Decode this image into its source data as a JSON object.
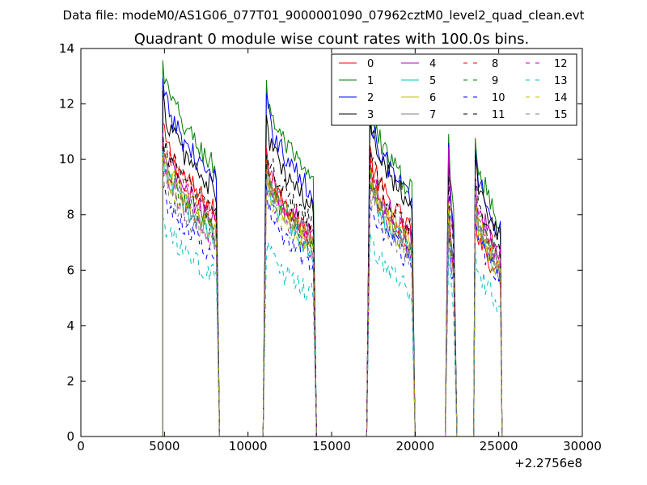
{
  "header": {
    "data_file": "Data file: modeM0/AS1G06_077T01_9000001090_07962cztM0_level2_quad_clean.evt"
  },
  "chart_data": {
    "type": "line",
    "title": "Quadrant 0 module wise count rates with 100.0s bins.",
    "xlabel": "",
    "ylabel": "",
    "x_offset_label": "+2.2756e8",
    "xlim": [
      0,
      30000
    ],
    "ylim": [
      0,
      14
    ],
    "x_ticks": [
      0,
      5000,
      10000,
      15000,
      20000,
      25000,
      30000
    ],
    "x_tick_labels": [
      "0",
      "5000",
      "10000",
      "15000",
      "20000",
      "25000",
      "30000"
    ],
    "y_ticks": [
      0,
      2,
      4,
      6,
      8,
      10,
      12,
      14
    ],
    "y_tick_labels": [
      "0",
      "2",
      "4",
      "6",
      "8",
      "10",
      "12",
      "14"
    ],
    "grid": false,
    "legend_position": "top-right",
    "segments": [
      {
        "start": 4900,
        "end": 8100,
        "fall_end": 8300,
        "rise_start": 4900
      },
      {
        "start": 11100,
        "end": 13900,
        "fall_end": 14100,
        "rise_start": 10900
      },
      {
        "start": 17300,
        "end": 19800,
        "fall_end": 20000,
        "rise_start": 17100
      },
      {
        "start": 22000,
        "end": 22300,
        "fall_end": 22500,
        "rise_start": 21800
      },
      {
        "start": 23600,
        "end": 25100,
        "fall_end": 25200,
        "rise_start": 23500
      }
    ],
    "series": [
      {
        "name": "0",
        "color": "#ff0000",
        "dash": "solid",
        "levels": [
          11.2,
          10.0,
          10.3,
          8.3,
          8.0
        ]
      },
      {
        "name": "1",
        "color": "#008000",
        "dash": "solid",
        "levels": [
          13.4,
          12.6,
          12.2,
          11.1,
          10.7
        ]
      },
      {
        "name": "2",
        "color": "#0000ff",
        "dash": "solid",
        "levels": [
          12.7,
          12.1,
          11.8,
          10.4,
          10.2
        ]
      },
      {
        "name": "3",
        "color": "#000000",
        "dash": "solid",
        "levels": [
          12.2,
          11.3,
          11.6,
          10.2,
          9.9
        ]
      },
      {
        "name": "4",
        "color": "#bf00bf",
        "dash": "solid",
        "levels": [
          10.6,
          10.1,
          9.9,
          10.4,
          9.1
        ]
      },
      {
        "name": "5",
        "color": "#00bfbf",
        "dash": "solid",
        "levels": [
          10.0,
          9.3,
          9.2,
          8.2,
          8.4
        ]
      },
      {
        "name": "6",
        "color": "#bfbf00",
        "dash": "solid",
        "levels": [
          10.4,
          9.6,
          9.5,
          8.0,
          8.2
        ]
      },
      {
        "name": "7",
        "color": "#808080",
        "dash": "solid",
        "levels": [
          10.1,
          9.8,
          9.4,
          8.1,
          8.5
        ]
      },
      {
        "name": "8",
        "color": "#ff0000",
        "dash": "dashed",
        "levels": [
          10.9,
          10.0,
          9.7,
          8.6,
          8.8
        ]
      },
      {
        "name": "9",
        "color": "#008000",
        "dash": "dashed",
        "levels": [
          10.2,
          9.7,
          9.6,
          8.4,
          8.9
        ]
      },
      {
        "name": "10",
        "color": "#0000ff",
        "dash": "dashed",
        "levels": [
          9.1,
          8.6,
          8.7,
          7.8,
          7.9
        ]
      },
      {
        "name": "11",
        "color": "#000000",
        "dash": "dashed",
        "levels": [
          11.0,
          10.6,
          10.4,
          9.4,
          9.3
        ]
      },
      {
        "name": "12",
        "color": "#bf00bf",
        "dash": "dashed",
        "levels": [
          9.8,
          9.4,
          9.3,
          8.3,
          8.7
        ]
      },
      {
        "name": "13",
        "color": "#00bfbf",
        "dash": "dashed",
        "levels": [
          7.9,
          7.0,
          7.2,
          6.7,
          6.6
        ]
      },
      {
        "name": "14",
        "color": "#bfbf00",
        "dash": "dashed",
        "levels": [
          10.0,
          9.2,
          9.3,
          8.2,
          8.6
        ]
      },
      {
        "name": "15",
        "color": "#808080",
        "dash": "dashed",
        "levels": [
          9.6,
          9.5,
          9.0,
          7.9,
          8.3
        ]
      }
    ]
  }
}
